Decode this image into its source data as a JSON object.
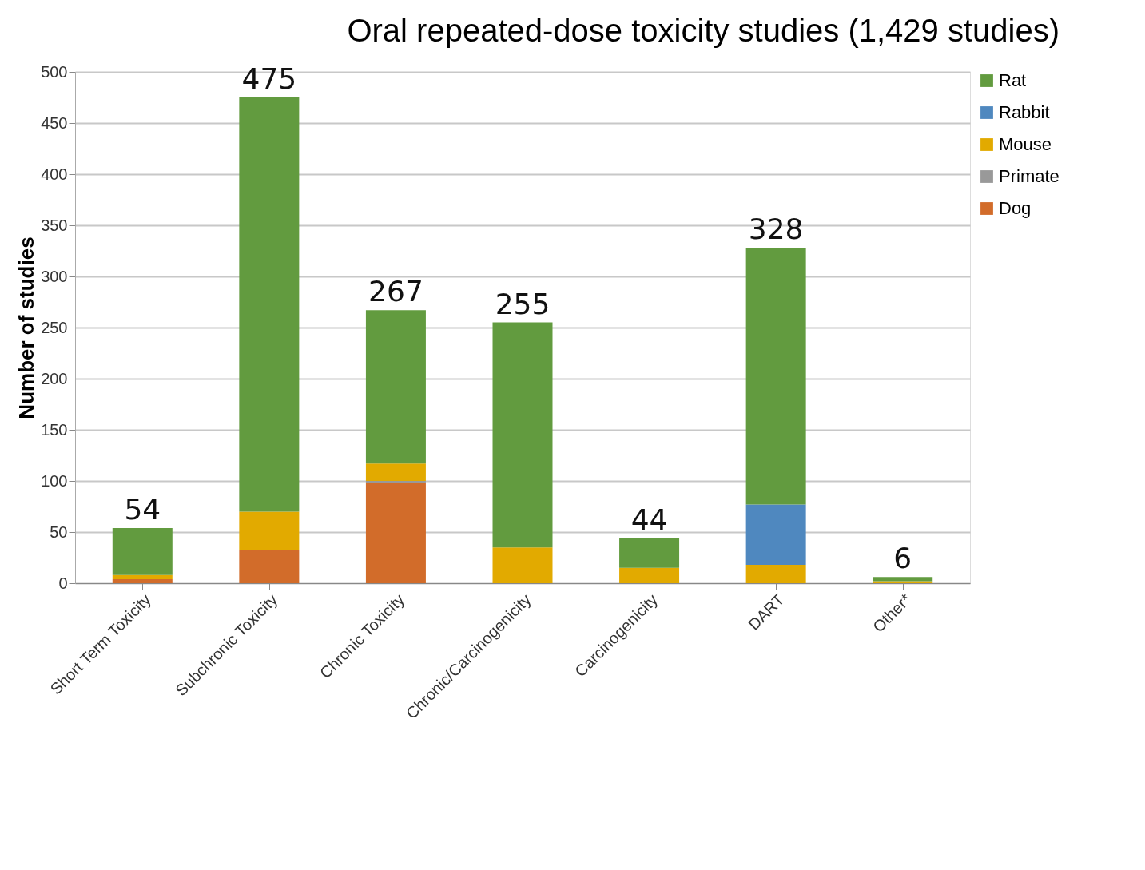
{
  "chart_data": {
    "type": "bar",
    "stacked": true,
    "title": "Oral repeated-dose toxicity studies (1,429 studies)",
    "ylabel": "Number of studies",
    "categories": [
      "Short Term Toxicity",
      "Subchronic Toxicity",
      "Chronic Toxicity",
      "Chronic/Carcinogenicity",
      "Carcinogenicity",
      "DART",
      "Other*"
    ],
    "series": [
      {
        "name": "Dog",
        "color": "#d26c2a",
        "values": [
          4,
          32,
          98,
          0,
          0,
          0,
          0
        ]
      },
      {
        "name": "Primate",
        "color": "#999999",
        "values": [
          0,
          0,
          2,
          0,
          0,
          0,
          0
        ]
      },
      {
        "name": "Mouse",
        "color": "#e2aa00",
        "values": [
          4,
          38,
          17,
          35,
          15,
          18,
          2
        ]
      },
      {
        "name": "Rabbit",
        "color": "#4f88bf",
        "values": [
          0,
          0,
          0,
          0,
          0,
          59,
          0
        ]
      },
      {
        "name": "Rat",
        "color": "#629b3f",
        "values": [
          46,
          405,
          150,
          220,
          29,
          251,
          4
        ]
      }
    ],
    "totals": [
      "54",
      "475",
      "267",
      "255",
      "44",
      "328",
      "6"
    ],
    "ylim": [
      0,
      500
    ],
    "yticks": [
      0,
      50,
      100,
      150,
      200,
      250,
      300,
      350,
      400,
      450,
      500
    ],
    "grid": "y",
    "legend": "right"
  }
}
